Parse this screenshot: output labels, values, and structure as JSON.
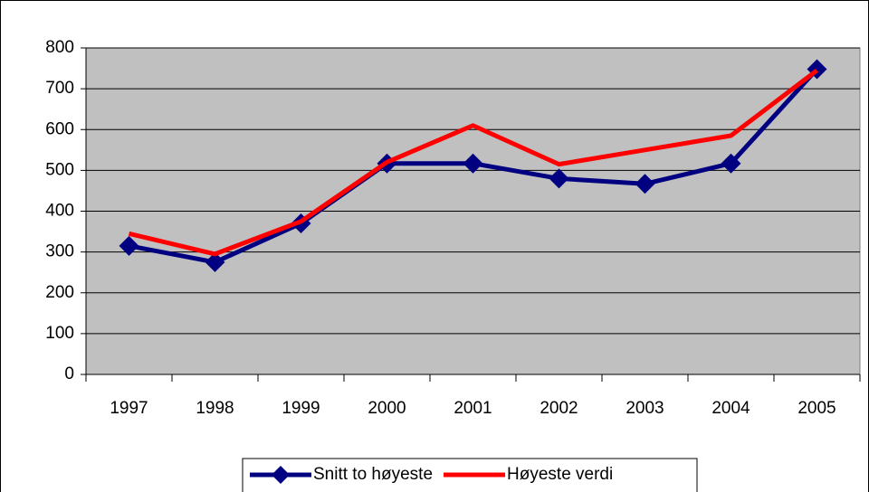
{
  "chart_data": {
    "type": "line",
    "categories": [
      "1997",
      "1998",
      "1999",
      "2000",
      "2001",
      "2002",
      "2003",
      "2004",
      "2005"
    ],
    "series": [
      {
        "name": "Snitt to høyeste",
        "color": "#000080",
        "marker": "diamond",
        "values": [
          315,
          275,
          370,
          517,
          517,
          480,
          467,
          517,
          748
        ]
      },
      {
        "name": "Høyeste verdi",
        "color": "#ff0000",
        "values": [
          345,
          295,
          375,
          520,
          610,
          515,
          550,
          585,
          745
        ]
      }
    ],
    "ylim": [
      0,
      800
    ],
    "yticks": [
      0,
      100,
      200,
      300,
      400,
      500,
      600,
      700,
      800
    ],
    "grid": true,
    "plot_background": "#c0c0c0",
    "legend": "bottom"
  }
}
